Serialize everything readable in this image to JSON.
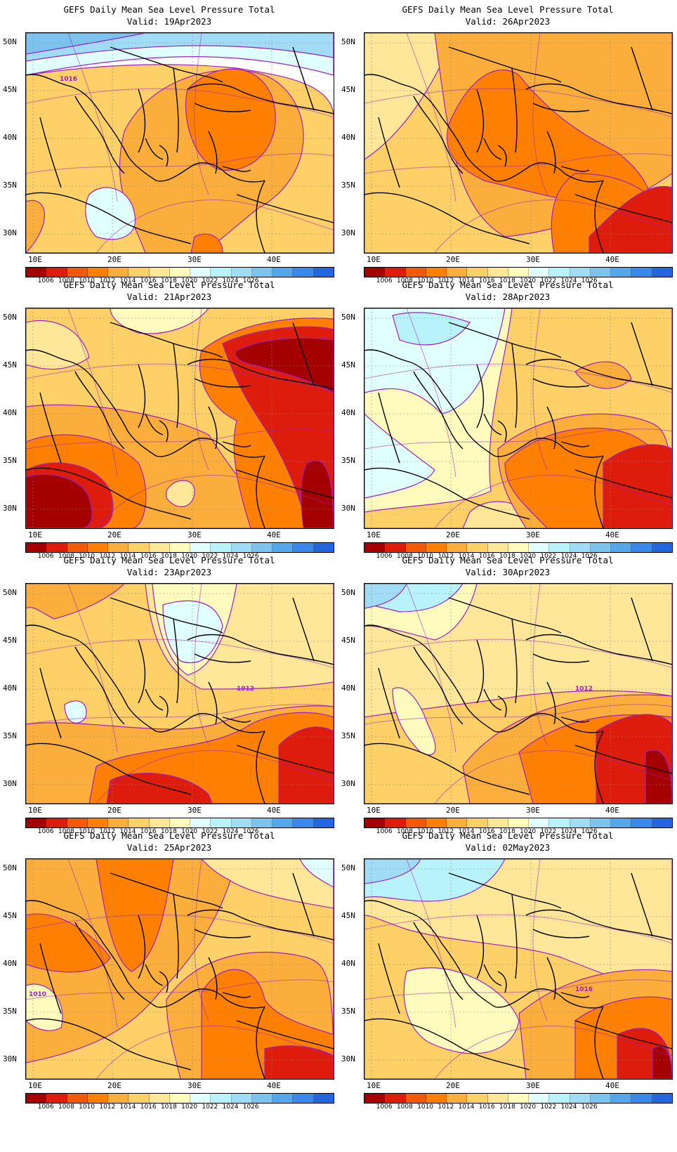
{
  "panel_title": "GEFS Daily Mean Sea Level Pressure Total",
  "valid_prefix": "Valid:",
  "lat_labels": [
    "50N",
    "45N",
    "40N",
    "35N",
    "30N"
  ],
  "lon_labels": [
    "10E",
    "20E",
    "30E",
    "40E"
  ],
  "colorbar": {
    "colors": [
      "#a50000",
      "#dd1c0c",
      "#f25a0a",
      "#ff8000",
      "#fbae3c",
      "#fdd068",
      "#ffe79a",
      "#fffbbc",
      "#e0ffff",
      "#b8f2fb",
      "#a0dcf5",
      "#7cc4ef",
      "#56a6ec",
      "#3a88ea",
      "#2466e0"
    ],
    "labels": [
      "1006",
      "1008",
      "1010",
      "1012",
      "1014",
      "1016",
      "1018",
      "1020",
      "1022",
      "1024",
      "1026"
    ]
  },
  "panels": [
    {
      "valid": "19Apr2023",
      "annotation": "1016"
    },
    {
      "valid": "26Apr2023",
      "annotation": ""
    },
    {
      "valid": "21Apr2023",
      "annotation": ""
    },
    {
      "valid": "28Apr2023",
      "annotation": ""
    },
    {
      "valid": "23Apr2023",
      "annotation": "1012"
    },
    {
      "valid": "30Apr2023",
      "annotation": "1012"
    },
    {
      "valid": "25Apr2023",
      "annotation": "1010"
    },
    {
      "valid": "02May2023",
      "annotation": "1016"
    }
  ]
}
